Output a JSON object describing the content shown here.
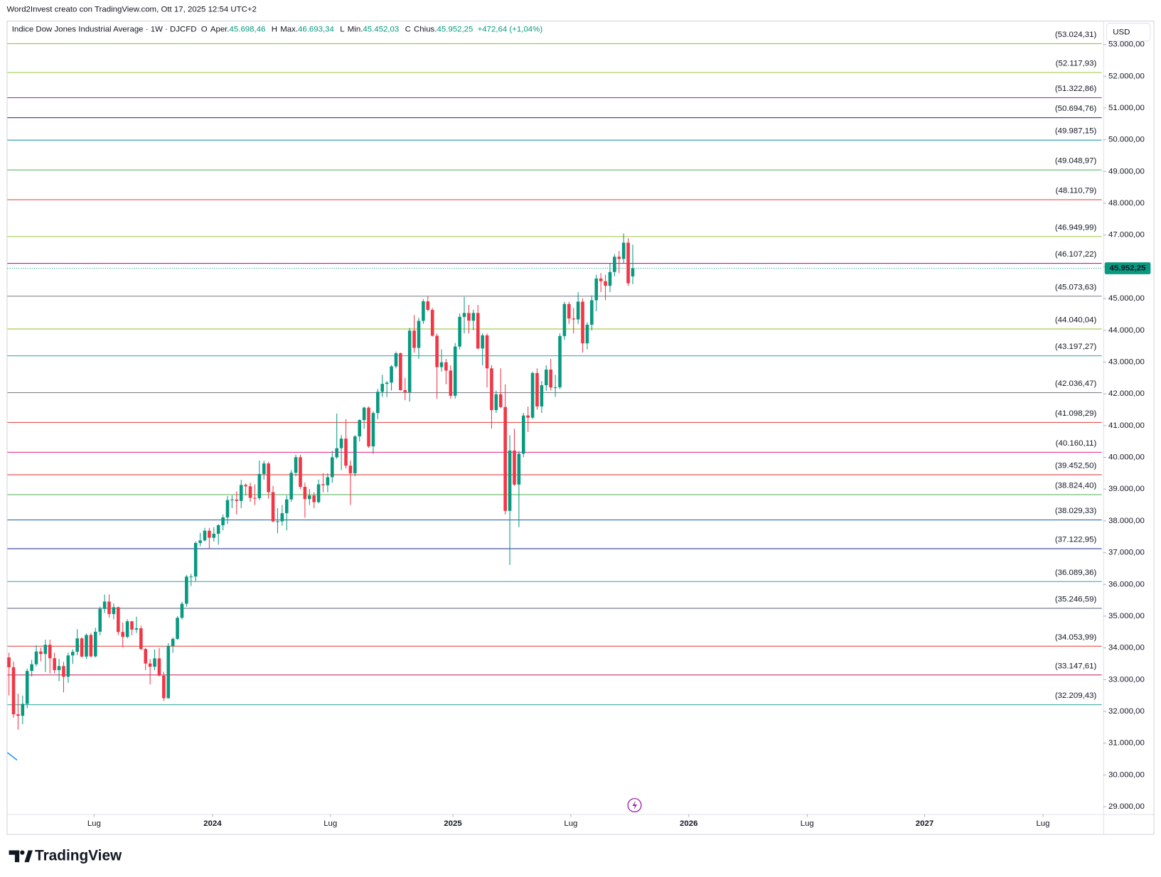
{
  "watermark": "Word2Invest creato con TradingView.com, Ott 17, 2025 12:54 UTC+2",
  "brand": "TradingView",
  "chart_data": {
    "type": "candlestick",
    "title": "Indice Dow Jones Industrial Average · 1W · DJCFD",
    "currency": "USD",
    "up_color": "#089981",
    "down_color": "#f23645",
    "ohlc_legend": [
      {
        "key": "O",
        "name": "Aper.",
        "value": 45698.46,
        "label": "45.698,46"
      },
      {
        "key": "H",
        "name": "Max.",
        "value": 46693.34,
        "label": "46.693,34"
      },
      {
        "key": "L",
        "name": "Min.",
        "value": 45452.03,
        "label": "45.452,03"
      },
      {
        "key": "C",
        "name": "Chius.",
        "value": 45952.25,
        "label": "45.952,25"
      }
    ],
    "change": {
      "value": 472.64,
      "percent": 1.04,
      "label": "+472,64 (+1,04%)"
    },
    "last_price": {
      "value": 45952.25,
      "label": "45.952,25"
    },
    "grid": false,
    "xlim": [
      -0.33,
      240
    ],
    "xticks": [
      {
        "value": 18.7,
        "label": "Lug"
      },
      {
        "value": 44.7,
        "label": "2024"
      },
      {
        "value": 70.6,
        "label": "Lug"
      },
      {
        "value": 97.5,
        "label": "2025"
      },
      {
        "value": 123.4,
        "label": "Lug"
      },
      {
        "value": 149.3,
        "label": "2026"
      },
      {
        "value": 175.3,
        "label": "Lug"
      },
      {
        "value": 201.1,
        "label": "2027"
      },
      {
        "value": 227.1,
        "label": "Lug"
      }
    ],
    "ylim": [
      28767,
      53747
    ],
    "yticks": [
      {
        "value": 29000,
        "label": "29.000,00"
      },
      {
        "value": 30000,
        "label": "30.000,00"
      },
      {
        "value": 31000,
        "label": "31.000,00"
      },
      {
        "value": 32000,
        "label": "32.000,00"
      },
      {
        "value": 33000,
        "label": "33.000,00"
      },
      {
        "value": 34000,
        "label": "34.000,00"
      },
      {
        "value": 35000,
        "label": "35.000,00"
      },
      {
        "value": 36000,
        "label": "36.000,00"
      },
      {
        "value": 37000,
        "label": "37.000,00"
      },
      {
        "value": 38000,
        "label": "38.000,00"
      },
      {
        "value": 39000,
        "label": "39.000,00"
      },
      {
        "value": 40000,
        "label": "40.000,00"
      },
      {
        "value": 41000,
        "label": "41.000,00"
      },
      {
        "value": 42000,
        "label": "42.000,00"
      },
      {
        "value": 43000,
        "label": "43.000,00"
      },
      {
        "value": 44000,
        "label": "44.000,00"
      },
      {
        "value": 45000,
        "label": "45.000,00"
      },
      {
        "value": 46000,
        "label": "46.000,00"
      },
      {
        "value": 47000,
        "label": "47.000,00"
      },
      {
        "value": 48000,
        "label": "48.000,00"
      },
      {
        "value": 49000,
        "label": "49.000,00"
      },
      {
        "value": 50000,
        "label": "50.000,00"
      },
      {
        "value": 51000,
        "label": "51.000,00"
      },
      {
        "value": 52000,
        "label": "52.000,00"
      },
      {
        "value": 53000,
        "label": "53.000,00"
      }
    ],
    "levels": [
      {
        "value": 53024.31,
        "label": "(53.024,31)",
        "color": "#9bc53d"
      },
      {
        "value": 52117.93,
        "label": "(52.117,93)",
        "color": "#9bc53d"
      },
      {
        "value": 51322.86,
        "label": "(51.322,86)",
        "color": "#9c27b0"
      },
      {
        "value": 50694.76,
        "label": "(50.694,76)",
        "color": "#303f9f"
      },
      {
        "value": 49987.15,
        "label": "(49.987,15)",
        "color": "#2196b3"
      },
      {
        "value": 49048.97,
        "label": "(49.048,97)",
        "color": "#4caf50"
      },
      {
        "value": 48110.79,
        "label": "(48.110,79)",
        "color": "#e53935"
      },
      {
        "value": 46949.99,
        "label": "(46.949,99)",
        "color": "#9bc53d"
      },
      {
        "value": 46107.22,
        "label": "(46.107,22)",
        "color": "#9c27b0"
      },
      {
        "value": 45073.63,
        "label": "(45.073,63)",
        "color": "#787b86"
      },
      {
        "value": 44040.04,
        "label": "(44.040,04)",
        "color": "#9bc53d"
      },
      {
        "value": 43197.27,
        "label": "(43.197,27)",
        "color": "#26a69a"
      },
      {
        "value": 42036.47,
        "label": "(42.036,47)",
        "color": "#787b86"
      },
      {
        "value": 41098.29,
        "label": "(41.098,29)",
        "color": "#e53935"
      },
      {
        "value": 40160.11,
        "label": "(40.160,11)",
        "color": "#e91e8c"
      },
      {
        "value": 39452.5,
        "label": "(39.452,50)",
        "color": "#d32f2f"
      },
      {
        "value": 38824.4,
        "label": "(38.824,40)",
        "color": "#4caf50"
      },
      {
        "value": 38029.33,
        "label": "(38.029,33)",
        "color": "#2e6da4"
      },
      {
        "value": 37122.95,
        "label": "(37.122,95)",
        "color": "#303f9f"
      },
      {
        "value": 36089.36,
        "label": "(36.089,36)",
        "color": "#26a69a"
      },
      {
        "value": 35246.59,
        "label": "(35.246,59)",
        "color": "#6a6d86"
      },
      {
        "value": 34053.99,
        "label": "(34.053,99)",
        "color": "#e53935"
      },
      {
        "value": 33147.61,
        "label": "(33.147,61)",
        "color": "#c2185b"
      },
      {
        "value": 32209.43,
        "label": "(32.209,43)",
        "color": "#26a69a"
      }
    ],
    "ohlc": [
      [
        33700,
        33850,
        32500,
        33390
      ],
      [
        33390,
        33570,
        31800,
        31909
      ],
      [
        31909,
        32560,
        31429,
        31862
      ],
      [
        31862,
        32500,
        31600,
        32238
      ],
      [
        32238,
        33350,
        32100,
        33274
      ],
      [
        33274,
        33620,
        33100,
        33485
      ],
      [
        33485,
        34080,
        33420,
        33886
      ],
      [
        33886,
        34000,
        33580,
        33809
      ],
      [
        33809,
        34260,
        33240,
        34098
      ],
      [
        34098,
        34260,
        33200,
        33674
      ],
      [
        33674,
        33850,
        33200,
        33300
      ],
      [
        33300,
        33650,
        32950,
        33427
      ],
      [
        33427,
        33560,
        32600,
        33093
      ],
      [
        33093,
        33850,
        32900,
        33762
      ],
      [
        33762,
        33950,
        33500,
        33877
      ],
      [
        33877,
        34590,
        33770,
        34299
      ],
      [
        34299,
        34340,
        33700,
        33727
      ],
      [
        33727,
        34450,
        33650,
        34407
      ],
      [
        34407,
        34470,
        33700,
        33734
      ],
      [
        33734,
        34630,
        33700,
        34509
      ],
      [
        34509,
        35300,
        34400,
        35228
      ],
      [
        35228,
        35680,
        35100,
        35459
      ],
      [
        35459,
        35680,
        34950,
        35066
      ],
      [
        35066,
        35400,
        34900,
        35281
      ],
      [
        35281,
        35300,
        34400,
        34500
      ],
      [
        34500,
        34800,
        34020,
        34346
      ],
      [
        34346,
        34900,
        34300,
        34837
      ],
      [
        34837,
        34850,
        34400,
        34577
      ],
      [
        34577,
        34980,
        34470,
        34618
      ],
      [
        34618,
        34700,
        33930,
        33964
      ],
      [
        33964,
        34000,
        33300,
        33508
      ],
      [
        33508,
        33650,
        32850,
        33407
      ],
      [
        33407,
        33950,
        33300,
        33670
      ],
      [
        33670,
        34000,
        33100,
        33127
      ],
      [
        33127,
        33250,
        32330,
        32418
      ],
      [
        32418,
        34150,
        32400,
        34061
      ],
      [
        34061,
        34330,
        33850,
        34283
      ],
      [
        34283,
        35000,
        34250,
        34947
      ],
      [
        34947,
        35450,
        34900,
        35390
      ],
      [
        35390,
        36300,
        35300,
        36245
      ],
      [
        36245,
        36330,
        35950,
        36247
      ],
      [
        36247,
        37350,
        36100,
        37305
      ],
      [
        37305,
        37620,
        37200,
        37385
      ],
      [
        37385,
        37780,
        37350,
        37690
      ],
      [
        37690,
        37780,
        37120,
        37466
      ],
      [
        37466,
        37800,
        37350,
        37593
      ],
      [
        37593,
        37900,
        37250,
        37863
      ],
      [
        37863,
        38200,
        37700,
        38109
      ],
      [
        38109,
        38780,
        37900,
        38654
      ],
      [
        38654,
        38800,
        38400,
        38671
      ],
      [
        38671,
        38930,
        38200,
        38628
      ],
      [
        38628,
        39290,
        38400,
        39131
      ],
      [
        39131,
        39180,
        38800,
        39087
      ],
      [
        39087,
        39200,
        38600,
        38723
      ],
      [
        38723,
        39150,
        38500,
        38715
      ],
      [
        38715,
        39900,
        38650,
        39476
      ],
      [
        39476,
        39890,
        39300,
        39807
      ],
      [
        39807,
        39850,
        38700,
        38904
      ],
      [
        38904,
        39100,
        37950,
        37983
      ],
      [
        37983,
        38400,
        37610,
        37986
      ],
      [
        37986,
        38500,
        37850,
        38240
      ],
      [
        38240,
        38800,
        37700,
        38676
      ],
      [
        38676,
        39600,
        38600,
        39513
      ],
      [
        39513,
        40080,
        39400,
        40004
      ],
      [
        40004,
        40080,
        39000,
        39070
      ],
      [
        39070,
        39200,
        38100,
        38686
      ],
      [
        38686,
        39000,
        38500,
        38799
      ],
      [
        38799,
        38900,
        38400,
        38589
      ],
      [
        38589,
        39300,
        38550,
        39150
      ],
      [
        39150,
        39500,
        38900,
        39119
      ],
      [
        39119,
        39500,
        38900,
        39375
      ],
      [
        39375,
        40200,
        39200,
        40001
      ],
      [
        40001,
        41380,
        39950,
        40288
      ],
      [
        40288,
        40700,
        39600,
        40589
      ],
      [
        40589,
        41200,
        39650,
        39737
      ],
      [
        39737,
        39900,
        38500,
        39498
      ],
      [
        39498,
        40700,
        39400,
        40660
      ],
      [
        40660,
        41200,
        40500,
        41175
      ],
      [
        41175,
        41600,
        40900,
        41563
      ],
      [
        41563,
        41600,
        40300,
        40345
      ],
      [
        40345,
        41450,
        40100,
        41394
      ],
      [
        41394,
        42150,
        41200,
        42063
      ],
      [
        42063,
        42600,
        41900,
        42313
      ],
      [
        42313,
        42400,
        41900,
        42352
      ],
      [
        42352,
        42900,
        42100,
        42864
      ],
      [
        42864,
        43330,
        42800,
        43276
      ],
      [
        43276,
        43300,
        42100,
        42114
      ],
      [
        42114,
        42500,
        41800,
        42052
      ],
      [
        42052,
        44080,
        41750,
        43989
      ],
      [
        43989,
        44480,
        43300,
        43445
      ],
      [
        43445,
        44400,
        43100,
        44297
      ],
      [
        44297,
        44980,
        44200,
        44911
      ],
      [
        44911,
        45070,
        44600,
        44643
      ],
      [
        44643,
        44700,
        43800,
        43828
      ],
      [
        43828,
        43900,
        41850,
        42840
      ],
      [
        42840,
        43400,
        42700,
        42992
      ],
      [
        42992,
        43100,
        42300,
        42732
      ],
      [
        42732,
        42900,
        41850,
        41938
      ],
      [
        41938,
        43600,
        41850,
        43488
      ],
      [
        43488,
        44530,
        43400,
        44424
      ],
      [
        44424,
        45050,
        43900,
        44545
      ],
      [
        44545,
        44800,
        43900,
        44303
      ],
      [
        44303,
        44650,
        44000,
        44546
      ],
      [
        44546,
        44800,
        43400,
        43428
      ],
      [
        43428,
        43900,
        42900,
        43841
      ],
      [
        43841,
        43900,
        42200,
        42802
      ],
      [
        42802,
        42900,
        40900,
        41488
      ],
      [
        41488,
        42100,
        41400,
        41985
      ],
      [
        41985,
        42800,
        41550,
        41583
      ],
      [
        41583,
        42300,
        38200,
        38315
      ],
      [
        38315,
        40700,
        36612,
        40213
      ],
      [
        40213,
        40900,
        39100,
        39142
      ],
      [
        39142,
        40200,
        37800,
        40114
      ],
      [
        40114,
        41400,
        40000,
        41317
      ],
      [
        41317,
        41600,
        40800,
        41249
      ],
      [
        41249,
        42700,
        41200,
        42655
      ],
      [
        42655,
        42800,
        41500,
        41603
      ],
      [
        41603,
        42400,
        41400,
        42270
      ],
      [
        42270,
        42900,
        42100,
        42763
      ],
      [
        42763,
        43100,
        42100,
        42198
      ],
      [
        42198,
        42600,
        41900,
        42207
      ],
      [
        42207,
        43900,
        42150,
        43819
      ],
      [
        43819,
        44900,
        43700,
        44828
      ],
      [
        44828,
        44900,
        44200,
        44371
      ],
      [
        44371,
        44700,
        43900,
        44342
      ],
      [
        44342,
        45200,
        44200,
        44902
      ],
      [
        44902,
        45000,
        43300,
        43589
      ],
      [
        43589,
        44250,
        43400,
        44176
      ],
      [
        44176,
        45100,
        44000,
        44946
      ],
      [
        44946,
        45750,
        44600,
        45631
      ],
      [
        45631,
        45800,
        45200,
        45545
      ],
      [
        45545,
        45750,
        44950,
        45401
      ],
      [
        45401,
        46100,
        45200,
        45834
      ],
      [
        45834,
        46400,
        45700,
        46315
      ],
      [
        46315,
        46500,
        45800,
        46247
      ],
      [
        46247,
        47050,
        46100,
        46758
      ],
      [
        46758,
        46900,
        45400,
        45480
      ],
      [
        45698.46,
        46693.34,
        45452.03,
        45952.25
      ]
    ]
  }
}
